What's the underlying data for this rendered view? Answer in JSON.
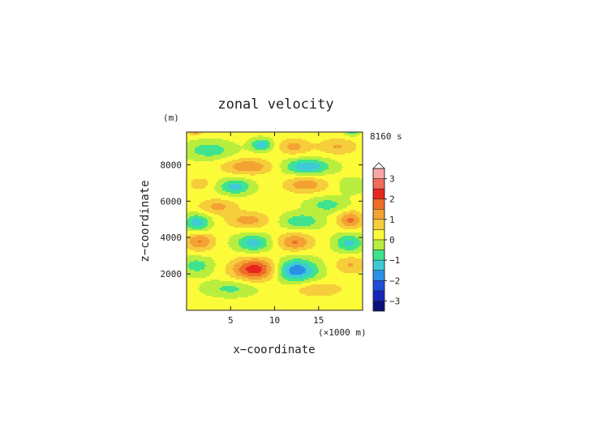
{
  "chart_data": {
    "type": "heatmap",
    "title": "zonal velocity",
    "xlabel": "x−coordinate",
    "ylabel": "z−coordinate",
    "x_unit": "(×1000 m)",
    "y_unit": "(m)",
    "time_label": "8160 s",
    "xlim": [
      0,
      20
    ],
    "ylim": [
      0,
      9800
    ],
    "x_ticks": [
      5,
      10,
      15
    ],
    "x_tick_labels": [
      "5",
      "10",
      "15"
    ],
    "y_ticks": [
      2000,
      4000,
      6000,
      8000
    ],
    "y_tick_labels": [
      "2000",
      "4000",
      "6000",
      "8000"
    ],
    "colorbar": {
      "range": [
        -3.5,
        3.5
      ],
      "step": 0.5,
      "tick_values": [
        3,
        2,
        1,
        0,
        -1,
        -2,
        -3
      ],
      "tick_labels": [
        "3",
        "2",
        "1",
        "0",
        "−1",
        "−2",
        "−3"
      ],
      "levels": [
        {
          "from": 3.0,
          "to": 3.5,
          "color": "#f7a6a6"
        },
        {
          "from": 2.5,
          "to": 3.0,
          "color": "#f26b5c"
        },
        {
          "from": 2.0,
          "to": 2.5,
          "color": "#e8261f"
        },
        {
          "from": 1.5,
          "to": 2.0,
          "color": "#ee6d27"
        },
        {
          "from": 1.0,
          "to": 1.5,
          "color": "#f3a233"
        },
        {
          "from": 0.5,
          "to": 1.0,
          "color": "#f6cd3b"
        },
        {
          "from": 0.0,
          "to": 0.5,
          "color": "#fbfb3a"
        },
        {
          "from": -0.5,
          "to": 0.0,
          "color": "#b9ee3e"
        },
        {
          "from": -1.0,
          "to": -0.5,
          "color": "#3fe38e"
        },
        {
          "from": -1.5,
          "to": -1.0,
          "color": "#3dcbd6"
        },
        {
          "from": -2.0,
          "to": -1.5,
          "color": "#2a8fe7"
        },
        {
          "from": -2.5,
          "to": -2.0,
          "color": "#1e4fdc"
        },
        {
          "from": -3.0,
          "to": -2.5,
          "color": "#1626b8"
        },
        {
          "from": -3.5,
          "to": -3.0,
          "color": "#0b0f7a"
        }
      ],
      "extend_top": true,
      "extend_top_color": "#ffffff"
    },
    "field_blobs": [
      {
        "x": 7.8,
        "z": 2250,
        "sx": 2.6,
        "sz": 600,
        "amp": 2.2
      },
      {
        "x": 12.4,
        "z": 2200,
        "sx": 2.4,
        "sz": 600,
        "amp": -2.1
      },
      {
        "x": 1.2,
        "z": 2450,
        "sx": 1.8,
        "sz": 500,
        "amp": -0.9
      },
      {
        "x": 18.6,
        "z": 2500,
        "sx": 1.8,
        "sz": 500,
        "amp": 0.9
      },
      {
        "x": 5.0,
        "z": 1200,
        "sx": 2.8,
        "sz": 420,
        "amp": -0.8
      },
      {
        "x": 15.0,
        "z": 1150,
        "sx": 2.8,
        "sz": 420,
        "amp": 0.8
      },
      {
        "x": 1.5,
        "z": 3800,
        "sx": 1.6,
        "sz": 520,
        "amp": 1.4
      },
      {
        "x": 7.6,
        "z": 3700,
        "sx": 2.0,
        "sz": 480,
        "amp": -1.4
      },
      {
        "x": 12.3,
        "z": 3750,
        "sx": 2.0,
        "sz": 480,
        "amp": 1.4
      },
      {
        "x": 18.5,
        "z": 3700,
        "sx": 1.6,
        "sz": 520,
        "amp": -1.3
      },
      {
        "x": 1.2,
        "z": 4800,
        "sx": 1.4,
        "sz": 500,
        "amp": -1.5
      },
      {
        "x": 7.0,
        "z": 4950,
        "sx": 2.4,
        "sz": 450,
        "amp": 1.1
      },
      {
        "x": 13.0,
        "z": 4900,
        "sx": 2.2,
        "sz": 420,
        "amp": -1.1
      },
      {
        "x": 18.6,
        "z": 4950,
        "sx": 1.4,
        "sz": 500,
        "amp": 1.5
      },
      {
        "x": 3.5,
        "z": 5700,
        "sx": 2.2,
        "sz": 420,
        "amp": 1.0
      },
      {
        "x": 16.0,
        "z": 5800,
        "sx": 2.2,
        "sz": 420,
        "amp": -0.9
      },
      {
        "x": 5.5,
        "z": 6800,
        "sx": 1.8,
        "sz": 420,
        "amp": -1.4
      },
      {
        "x": 13.5,
        "z": 6900,
        "sx": 2.4,
        "sz": 450,
        "amp": 1.2
      },
      {
        "x": 1.5,
        "z": 6950,
        "sx": 1.4,
        "sz": 420,
        "amp": 0.6
      },
      {
        "x": 18.7,
        "z": 6850,
        "sx": 1.4,
        "sz": 420,
        "amp": -0.6
      },
      {
        "x": 7.0,
        "z": 7900,
        "sx": 2.8,
        "sz": 430,
        "amp": 1.3
      },
      {
        "x": 13.7,
        "z": 7900,
        "sx": 2.6,
        "sz": 430,
        "amp": -1.6
      },
      {
        "x": 2.6,
        "z": 8800,
        "sx": 2.6,
        "sz": 480,
        "amp": -1.0
      },
      {
        "x": 8.5,
        "z": 9100,
        "sx": 1.2,
        "sz": 320,
        "amp": -1.5
      },
      {
        "x": 12.2,
        "z": 9000,
        "sx": 1.8,
        "sz": 450,
        "amp": 1.0
      },
      {
        "x": 17.2,
        "z": 9000,
        "sx": 2.2,
        "sz": 450,
        "amp": 0.9
      },
      {
        "x": 18.8,
        "z": 9800,
        "sx": 0.8,
        "sz": 200,
        "amp": -1.0
      },
      {
        "x": 1.0,
        "z": 9800,
        "sx": 0.8,
        "sz": 200,
        "amp": 1.0
      }
    ]
  }
}
